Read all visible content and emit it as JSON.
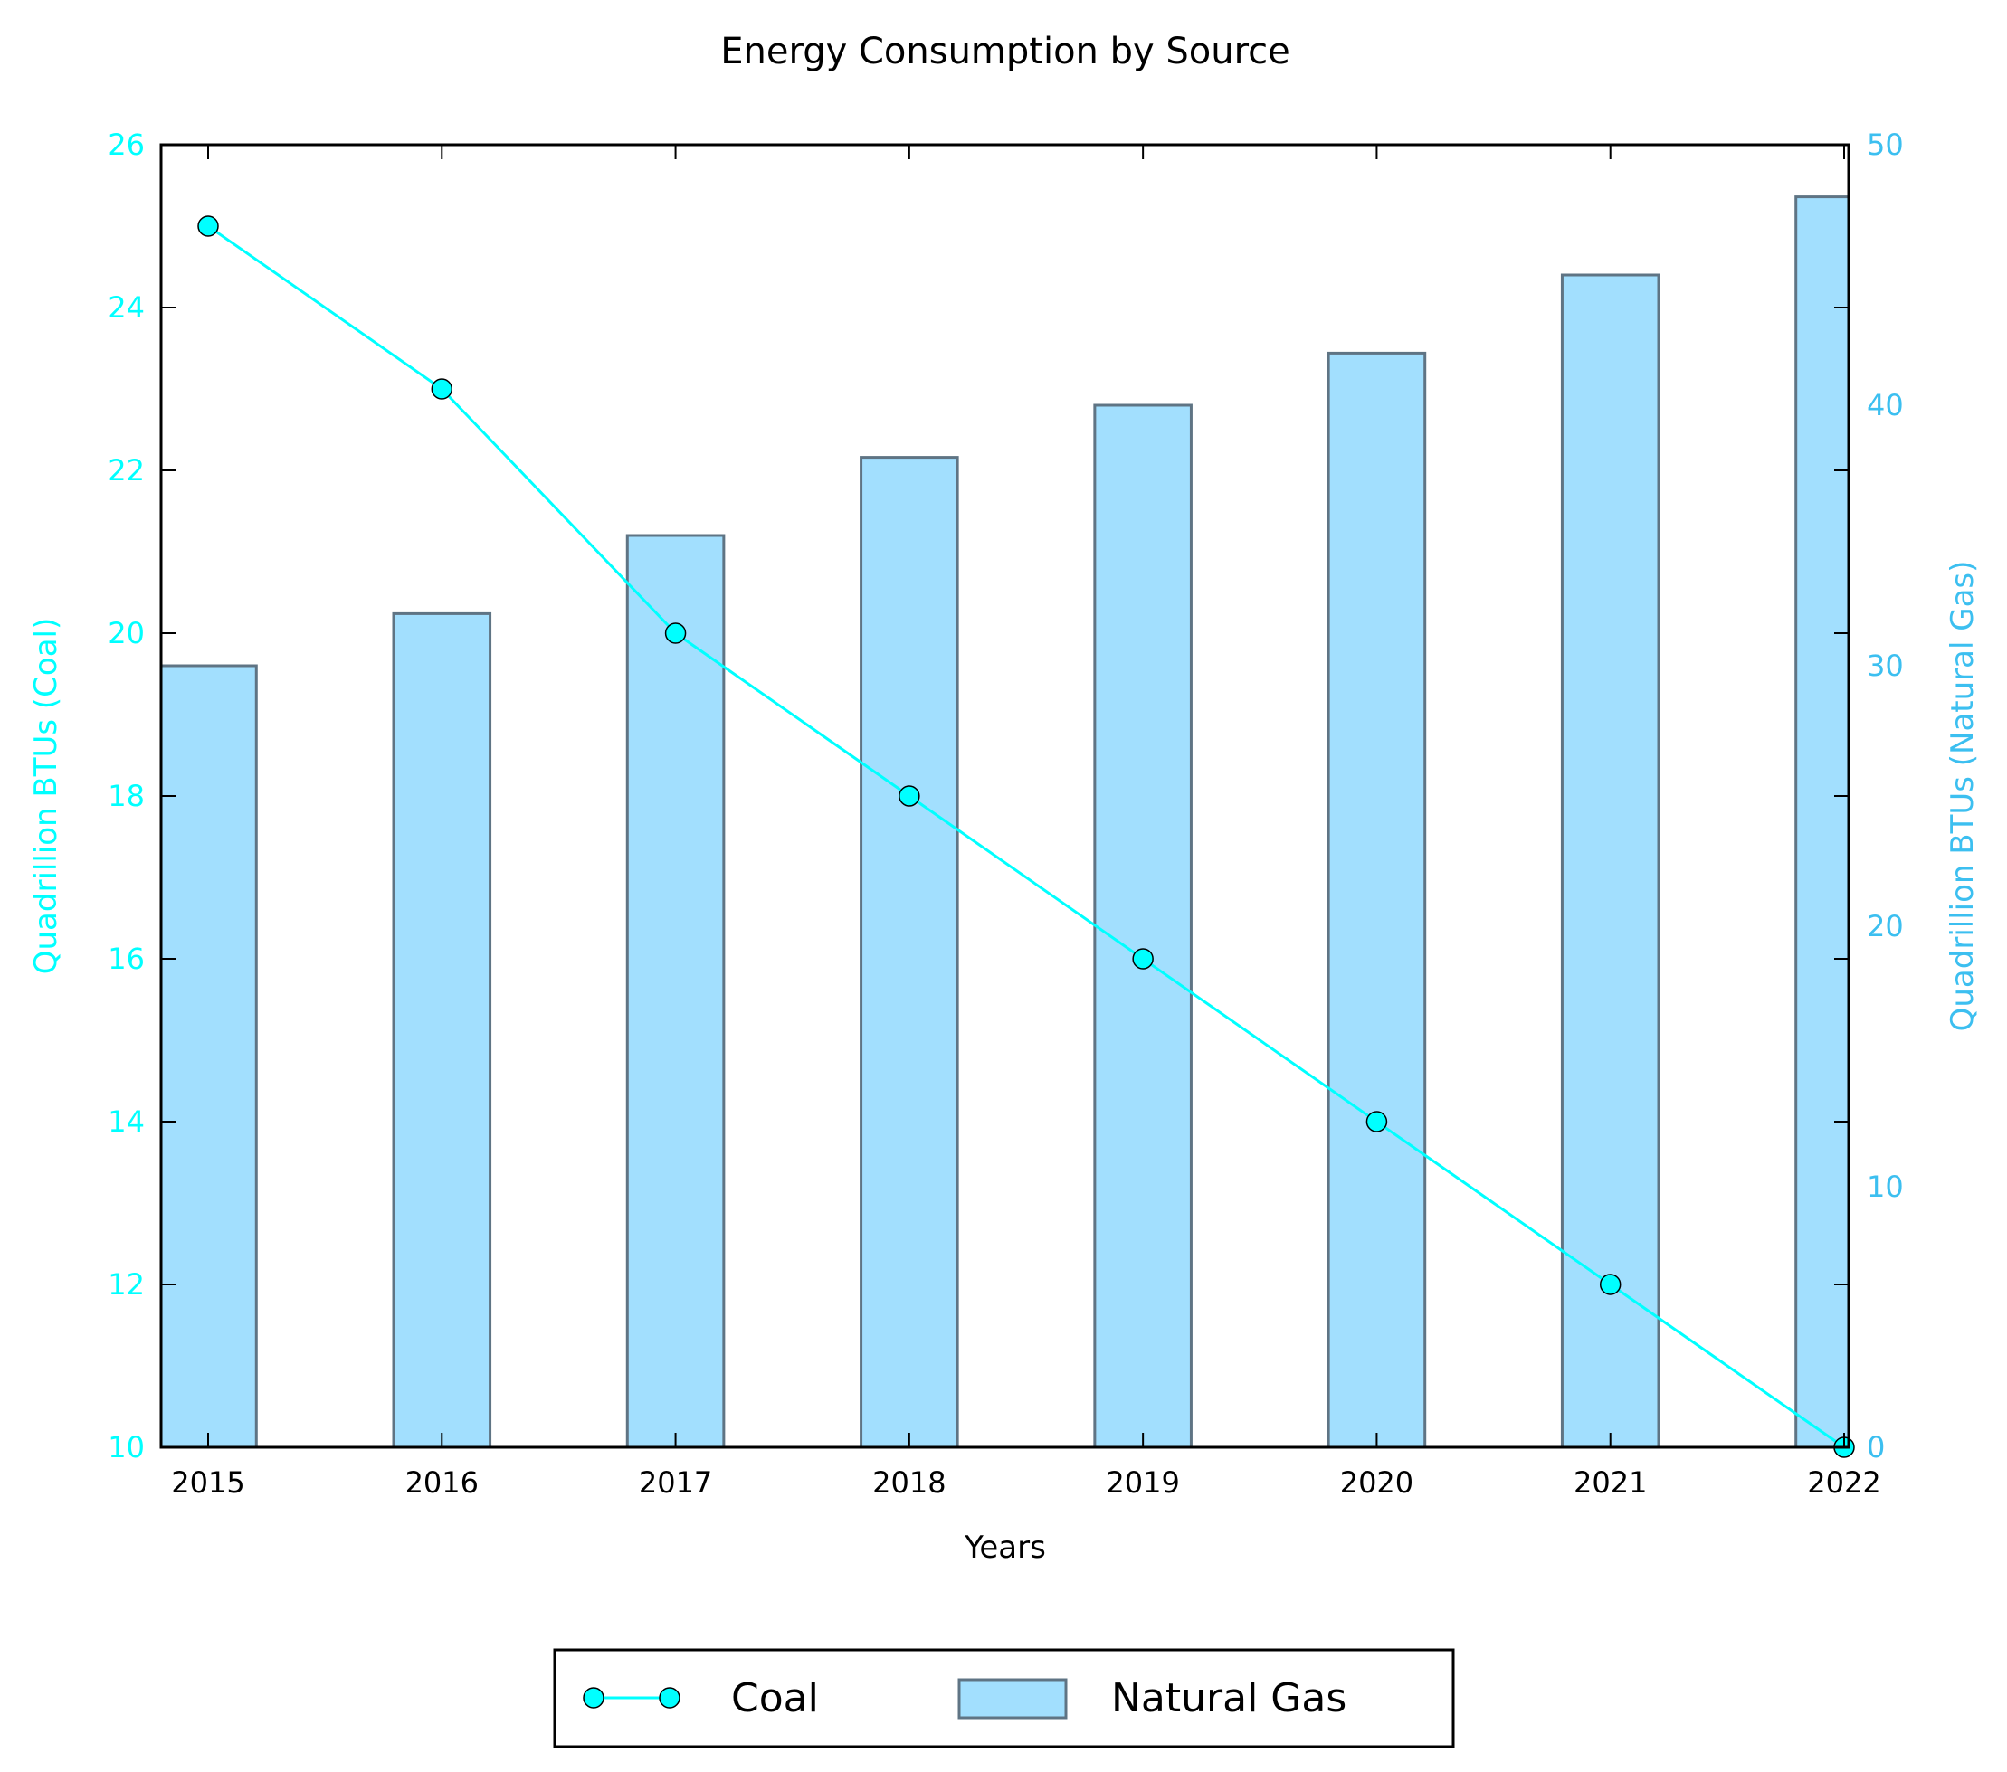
{
  "colors": {
    "coal": "#00ffff",
    "coal_marker": "#00ffff",
    "gas_fill": "#a2dffe",
    "gas_edge": "#5f7484",
    "left_axis": "#00ffff",
    "right_axis": "#3cbff0",
    "frame": "#000000"
  },
  "chart_data": {
    "type": "bar",
    "title": "Energy Consumption by Source",
    "xlabel": "Years",
    "categories": [
      "2015",
      "2016",
      "2017",
      "2018",
      "2019",
      "2020",
      "2021",
      "2022"
    ],
    "y_left": {
      "label": "Quadrillion BTUs (Coal)",
      "range": [
        10,
        26
      ],
      "ticks": [
        "10",
        "12",
        "14",
        "16",
        "18",
        "20",
        "22",
        "24",
        "26"
      ]
    },
    "y_right": {
      "label": "Quadrillion BTUs (Natural Gas)",
      "range": [
        0,
        50
      ],
      "ticks": [
        "0",
        "10",
        "20",
        "30",
        "40",
        "50"
      ]
    },
    "series": [
      {
        "name": "Coal",
        "type": "line",
        "axis": "left",
        "values": [
          25,
          23,
          20,
          18,
          16,
          14,
          12,
          10
        ]
      },
      {
        "name": "Natural Gas",
        "type": "bar",
        "axis": "right",
        "values": [
          30,
          32,
          35,
          38,
          40,
          42,
          45,
          48
        ]
      }
    ],
    "grid": false,
    "legend": {
      "placement": "bottom-center",
      "entries": [
        "Coal",
        "Natural Gas"
      ]
    }
  }
}
